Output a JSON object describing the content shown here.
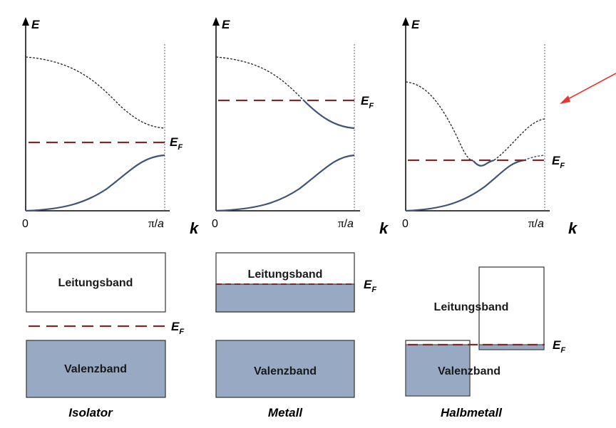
{
  "panels": [
    {
      "id": "isolator",
      "axis_e": "E",
      "axis_k": "k",
      "tick_zero": "0",
      "tick_pi": "π",
      "tick_a": "a",
      "fermi_main": "E",
      "fermi_sub": "F",
      "upper_band_label": "Leitungsband",
      "lower_band_label": "Valenzband",
      "caption": "Isolator"
    },
    {
      "id": "metall",
      "axis_e": "E",
      "axis_k": "k",
      "tick_zero": "0",
      "tick_pi": "π",
      "tick_a": "a",
      "fermi_main": "E",
      "fermi_sub": "F",
      "upper_band_label": "Leitungsband",
      "lower_band_label": "Valenzband",
      "caption": "Metall"
    },
    {
      "id": "halbmetall",
      "axis_e": "E",
      "axis_k": "k",
      "tick_zero": "0",
      "tick_pi": "π",
      "tick_a": "a",
      "fermi_main": "E",
      "fermi_sub": "F",
      "upper_band_label": "Leitungsband",
      "lower_band_label": "Valenzband",
      "caption": "Halbmetall"
    }
  ],
  "colors": {
    "valence_curve": "#3d5478",
    "conduction_curve": "#222222",
    "fermi_line": "#7a2a2a",
    "filled_band": "#97a9c3",
    "band_border": "#333333",
    "arrow": "#e8352d"
  },
  "annotation": {
    "arrow_icon": "red-arrow-icon"
  }
}
